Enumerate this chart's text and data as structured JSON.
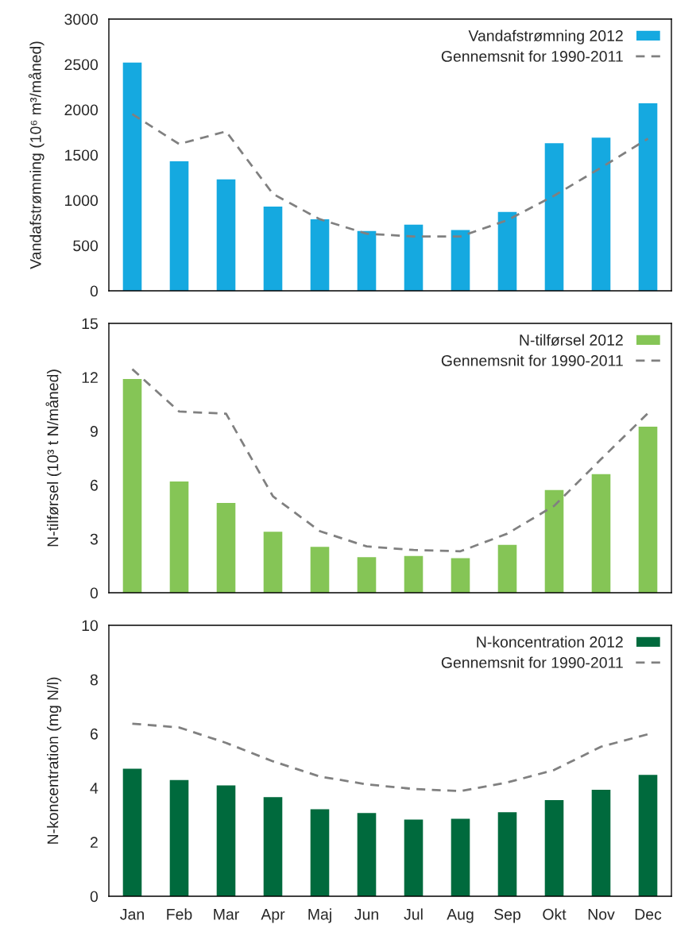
{
  "chart_data": [
    {
      "type": "bar",
      "ylabel": "Vandafstrømning (10⁶ m³/måned)",
      "ylim": [
        0,
        3000
      ],
      "yticks": [
        0,
        500,
        1000,
        1500,
        2000,
        2500,
        3000
      ],
      "legend": "top right",
      "tick_labels": "y",
      "series": [
        {
          "name": "Vandafstrømning 2012",
          "color": "#15a9e0",
          "values": [
            2520,
            1430,
            1230,
            930,
            790,
            660,
            730,
            670,
            870,
            1630,
            1690,
            2070
          ]
        },
        {
          "name": "Gennemsnit for 1990-2011",
          "type": "line",
          "line_style": "dashed",
          "color": "#808080",
          "values": [
            1950,
            1620,
            1760,
            1070,
            790,
            630,
            600,
            600,
            780,
            1050,
            1360,
            1680
          ]
        }
      ]
    },
    {
      "type": "bar",
      "ylabel": "N-tilførsel (10³ t N/måned)",
      "ylim": [
        0,
        15
      ],
      "yticks": [
        0,
        3,
        6,
        9,
        12,
        15
      ],
      "legend": "top right",
      "tick_labels": "y",
      "series": [
        {
          "name": "N-tilførsel 2012",
          "color": "#85c556",
          "values": [
            11.9,
            6.2,
            5.0,
            3.4,
            2.55,
            1.98,
            2.05,
            1.93,
            2.67,
            5.72,
            6.6,
            9.25
          ]
        },
        {
          "name": "Gennemsnit for 1990-2011",
          "type": "line",
          "line_style": "dashed",
          "color": "#808080",
          "values": [
            12.45,
            10.09,
            9.97,
            5.37,
            3.43,
            2.58,
            2.38,
            2.31,
            3.29,
            4.84,
            7.44,
            10.0
          ]
        }
      ]
    },
    {
      "type": "bar",
      "ylabel": "N-koncentration (mg N/l)",
      "categories": [
        "Jan",
        "Feb",
        "Mar",
        "Apr",
        "Maj",
        "Jun",
        "Jul",
        "Aug",
        "Sep",
        "Okt",
        "Nov",
        "Dec"
      ],
      "ylim": [
        0,
        10
      ],
      "yticks": [
        0,
        2,
        4,
        6,
        8,
        10
      ],
      "legend": "top right",
      "series": [
        {
          "name": "N-koncentration 2012",
          "color": "#006a3d",
          "values": [
            4.71,
            4.29,
            4.09,
            3.66,
            3.21,
            3.07,
            2.83,
            2.86,
            3.1,
            3.55,
            3.93,
            4.48
          ]
        },
        {
          "name": "Gennemsnit for 1990-2011",
          "type": "line",
          "line_style": "dashed",
          "color": "#808080",
          "values": [
            6.37,
            6.23,
            5.66,
            4.98,
            4.42,
            4.13,
            3.96,
            3.88,
            4.2,
            4.66,
            5.52,
            5.98
          ]
        }
      ]
    }
  ]
}
